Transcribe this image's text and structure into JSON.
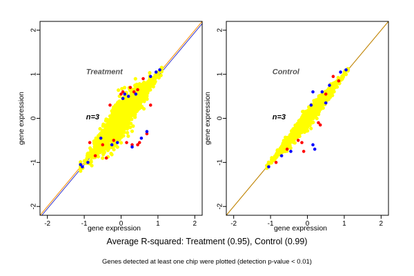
{
  "captions": {
    "main": "Average R-squared: Treatment (0.95), Control (0.99)",
    "sub": "Genes detected at least one chip were plotted (detection p-value < 0.01)"
  },
  "colors": {
    "point_main": "#ffff00",
    "point_red": "#ff0000",
    "point_blue": "#0000ff",
    "identity_line": "#ff8c00",
    "fit_line": "#3333cc",
    "fit_line_control": "#b8860b"
  },
  "chart_data": [
    {
      "type": "scatter",
      "title": "Treatment",
      "annotation": "n=3",
      "xlabel": "gene expression",
      "ylabel": "gene expression",
      "xlim": [
        -2.2,
        2.2
      ],
      "ylim": [
        -2.2,
        2.2
      ],
      "xticks": [
        "-2",
        "-1",
        "0",
        "1",
        "2"
      ],
      "yticks": [
        "-2",
        "-1",
        "0",
        "1",
        "2"
      ],
      "grid": false,
      "lines": [
        {
          "name": "identity",
          "slope": 1.0,
          "intercept": 0.0,
          "color": "#ff8c00"
        },
        {
          "name": "fit",
          "slope": 1.0,
          "intercept": -0.05,
          "color": "#3333cc"
        }
      ],
      "cloud": {
        "x_range": [
          -1.1,
          1.1
        ],
        "spread": 0.45,
        "color": "#ffff00"
      },
      "series": [
        {
          "color": "#ff0000",
          "points": [
            [
              0.05,
              0.6
            ],
            [
              0.0,
              0.55
            ],
            [
              0.45,
              0.65
            ],
            [
              0.35,
              0.6
            ],
            [
              0.7,
              -0.35
            ],
            [
              0.5,
              -0.55
            ],
            [
              0.45,
              -0.6
            ],
            [
              -0.5,
              -0.6
            ],
            [
              -0.2,
              -0.5
            ],
            [
              -0.3,
              0.3
            ],
            [
              0.15,
              -0.55
            ],
            [
              0.25,
              0.7
            ],
            [
              0.6,
              0.9
            ],
            [
              -0.7,
              -0.85
            ],
            [
              -0.4,
              -0.9
            ],
            [
              -0.85,
              -0.55
            ],
            [
              0.8,
              0.3
            ],
            [
              0.3,
              -0.6
            ]
          ]
        },
        {
          "color": "#0000ff",
          "points": [
            [
              0.1,
              0.55
            ],
            [
              0.05,
              0.45
            ],
            [
              0.4,
              0.55
            ],
            [
              0.7,
              -0.3
            ],
            [
              0.55,
              -0.45
            ],
            [
              -0.1,
              -0.55
            ],
            [
              -1.05,
              -1.1
            ],
            [
              -1.1,
              -1.05
            ],
            [
              0.95,
              1.05
            ],
            [
              1.05,
              1.1
            ],
            [
              0.3,
              -0.65
            ],
            [
              -0.9,
              -1.0
            ],
            [
              -0.55,
              -0.45
            ],
            [
              0.8,
              0.95
            ],
            [
              -0.25,
              -0.6
            ],
            [
              0.2,
              0.5
            ]
          ]
        }
      ]
    },
    {
      "type": "scatter",
      "title": "Control",
      "annotation": "n=3",
      "xlabel": "gene expression",
      "ylabel": "gene expression",
      "xlim": [
        -2.2,
        2.2
      ],
      "ylim": [
        -2.2,
        2.2
      ],
      "xticks": [
        "-2",
        "-1",
        "0",
        "1",
        "2"
      ],
      "yticks": [
        "-2",
        "-1",
        "0",
        "1",
        "2"
      ],
      "grid": false,
      "lines": [
        {
          "name": "identity",
          "slope": 1.0,
          "intercept": 0.0,
          "color": "#ff8c00"
        },
        {
          "name": "fit",
          "slope": 1.0,
          "intercept": 0.0,
          "color": "#b8860b"
        }
      ],
      "cloud": {
        "x_range": [
          -1.1,
          1.1
        ],
        "spread": 0.2,
        "color": "#ffff00"
      },
      "series": [
        {
          "color": "#ff0000",
          "points": [
            [
              -0.15,
              -0.55
            ],
            [
              -0.1,
              -0.75
            ],
            [
              0.35,
              -0.15
            ],
            [
              0.85,
              0.85
            ],
            [
              0.7,
              0.95
            ],
            [
              -0.55,
              -0.7
            ],
            [
              0.3,
              -0.1
            ],
            [
              -0.25,
              -0.5
            ],
            [
              0.5,
              0.55
            ],
            [
              -0.85,
              -1.0
            ]
          ]
        },
        {
          "color": "#0000ff",
          "points": [
            [
              0.15,
              0.6
            ],
            [
              0.15,
              -0.6
            ],
            [
              0.2,
              -0.7
            ],
            [
              0.5,
              0.35
            ],
            [
              -1.05,
              -1.1
            ],
            [
              0.9,
              1.05
            ],
            [
              1.05,
              1.1
            ],
            [
              -0.45,
              -0.75
            ],
            [
              0.6,
              0.75
            ],
            [
              -0.7,
              -0.85
            ],
            [
              0.1,
              0.3
            ],
            [
              0.4,
              0.6
            ]
          ]
        }
      ]
    }
  ]
}
